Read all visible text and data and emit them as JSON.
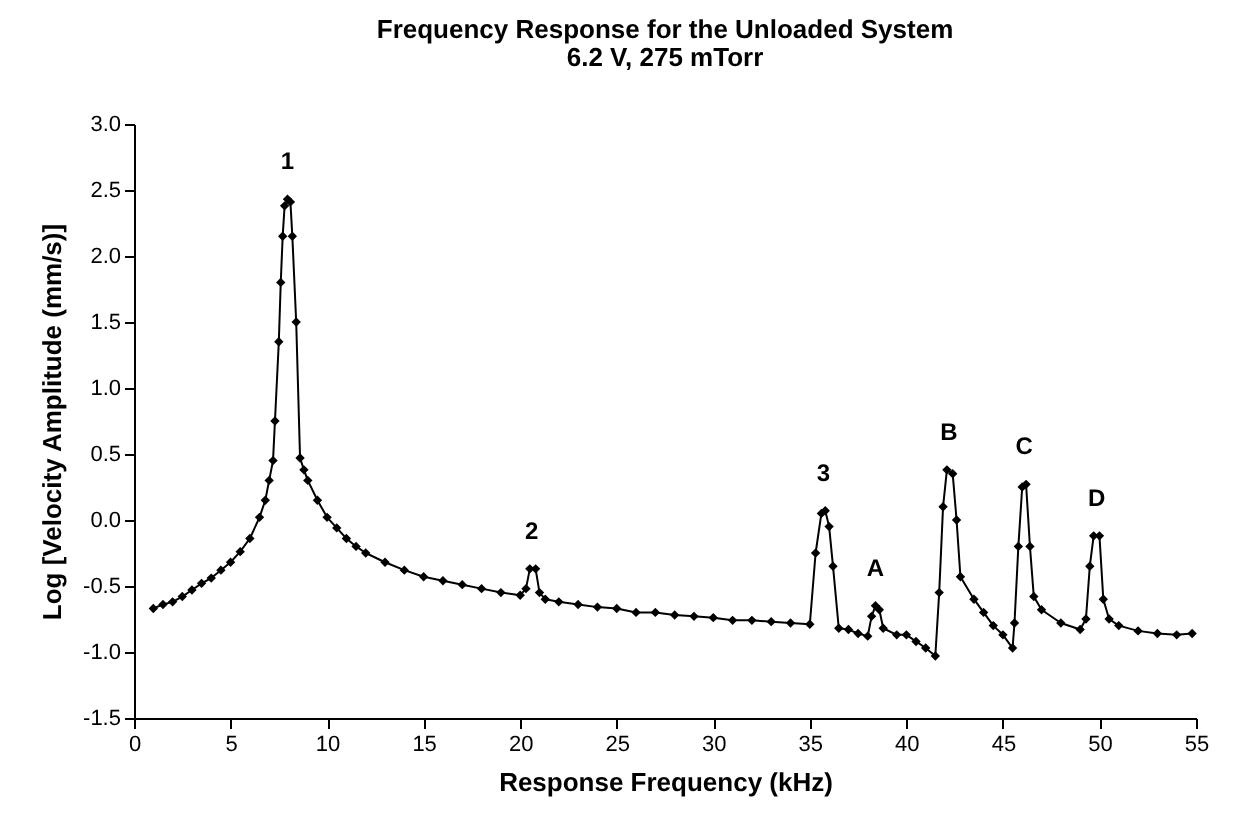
{
  "chart_data": {
    "type": "line",
    "title": "Frequency Response for the Unloaded System",
    "subtitle": "6.2 V, 275 mTorr",
    "xlabel": "Response Frequency (kHz)",
    "ylabel": "Log [Velocity Amplitude (mm/s)]",
    "x": [
      1.0,
      1.5,
      2,
      2.5,
      3,
      3.5,
      4,
      4.5,
      5,
      5.5,
      6,
      6.5,
      6.8,
      7.0,
      7.2,
      7.3,
      7.5,
      7.6,
      7.7,
      7.8,
      7.95,
      8.1,
      8.2,
      8.4,
      8.6,
      8.8,
      9,
      9.5,
      10,
      10.5,
      11,
      11.5,
      12,
      13,
      14,
      15,
      16,
      17,
      18,
      19,
      20,
      20.3,
      20.5,
      20.8,
      21,
      21.3,
      22,
      23,
      24,
      25,
      26,
      27,
      28,
      29,
      30,
      31,
      32,
      33,
      34,
      35,
      35.3,
      35.6,
      35.8,
      36,
      36.2,
      36.5,
      37,
      37.5,
      38,
      38.2,
      38.4,
      38.6,
      38.8,
      39.5,
      40,
      40.5,
      41,
      41.5,
      41.7,
      41.9,
      42.1,
      42.4,
      42.6,
      42.8,
      43.5,
      44,
      44.5,
      45,
      45.5,
      45.6,
      45.8,
      46,
      46.2,
      46.4,
      46.6,
      47,
      48,
      49,
      49.3,
      49.5,
      49.7,
      50.0,
      50.2,
      50.5,
      51,
      52,
      53,
      54,
      54.8
    ],
    "values": [
      -0.67,
      -0.64,
      -0.62,
      -0.58,
      -0.53,
      -0.48,
      -0.44,
      -0.38,
      -0.32,
      -0.24,
      -0.14,
      0.02,
      0.15,
      0.3,
      0.45,
      0.75,
      1.35,
      1.8,
      2.15,
      2.38,
      2.43,
      2.41,
      2.15,
      1.5,
      0.47,
      0.38,
      0.3,
      0.15,
      0.02,
      -0.06,
      -0.14,
      -0.2,
      -0.25,
      -0.32,
      -0.38,
      -0.43,
      -0.46,
      -0.49,
      -0.52,
      -0.55,
      -0.57,
      -0.52,
      -0.37,
      -0.37,
      -0.55,
      -0.6,
      -0.62,
      -0.64,
      -0.66,
      -0.67,
      -0.7,
      -0.7,
      -0.72,
      -0.73,
      -0.74,
      -0.76,
      -0.76,
      -0.77,
      -0.78,
      -0.79,
      -0.25,
      0.05,
      0.07,
      -0.05,
      -0.35,
      -0.82,
      -0.83,
      -0.86,
      -0.88,
      -0.73,
      -0.65,
      -0.68,
      -0.82,
      -0.87,
      -0.87,
      -0.92,
      -0.97,
      -1.03,
      -0.55,
      0.1,
      0.38,
      0.35,
      0.0,
      -0.43,
      -0.6,
      -0.7,
      -0.8,
      -0.87,
      -0.97,
      -0.78,
      -0.2,
      0.25,
      0.27,
      -0.2,
      -0.58,
      -0.68,
      -0.78,
      -0.83,
      -0.75,
      -0.35,
      -0.12,
      -0.12,
      -0.6,
      -0.75,
      -0.8,
      -0.84,
      -0.86,
      -0.87,
      -0.86
    ],
    "color": "#000000",
    "marker": "diamond",
    "line_style": "solid",
    "grid": false,
    "xlim": [
      0,
      55
    ],
    "xticks": [
      0,
      5,
      10,
      15,
      20,
      25,
      30,
      35,
      40,
      45,
      50,
      55
    ],
    "ylim": [
      -1.5,
      3.0
    ],
    "yticks": [
      {
        "value": -1.5,
        "label": "-1.5"
      },
      {
        "value": -1.0,
        "label": "-1.0"
      },
      {
        "value": -0.5,
        "label": "-0.5"
      },
      {
        "value": 0,
        "label": "0.0"
      },
      {
        "value": 0.5,
        "label": "0.5"
      },
      {
        "value": 1.0,
        "label": "1.0"
      },
      {
        "value": 1.5,
        "label": "1.5"
      },
      {
        "value": 2.0,
        "label": "2.0"
      },
      {
        "value": 2.5,
        "label": "2.5"
      },
      {
        "value": 3.0,
        "label": "3.0"
      }
    ],
    "annotations": [
      {
        "text": "1",
        "x": 7.95,
        "y": 2.43
      },
      {
        "text": "2",
        "x": 20.6,
        "y": -0.37
      },
      {
        "text": "3",
        "x": 35.7,
        "y": 0.07
      },
      {
        "text": "A",
        "x": 38.4,
        "y": -0.65
      },
      {
        "text": "B",
        "x": 42.2,
        "y": 0.38
      },
      {
        "text": "C",
        "x": 46.1,
        "y": 0.27
      },
      {
        "text": "D",
        "x": 49.85,
        "y": -0.12
      }
    ]
  }
}
